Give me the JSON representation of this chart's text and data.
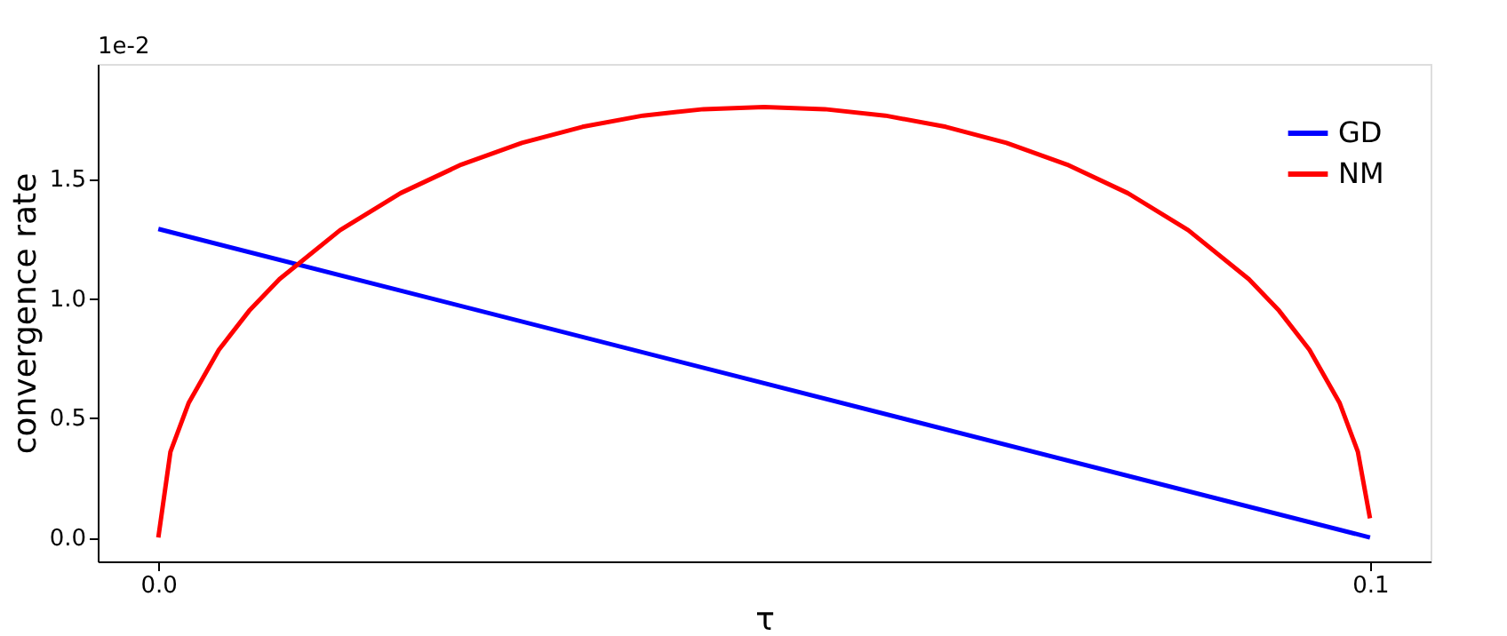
{
  "chart_data": {
    "type": "line",
    "xlabel": "τ",
    "ylabel": "convergence rate",
    "annotations": [
      "1e-2"
    ],
    "xlim": [
      -0.005,
      0.105
    ],
    "ylim": [
      -0.1,
      1.98
    ],
    "xticks": [
      {
        "value": 0,
        "label": "0.0"
      },
      0.1
    ],
    "yticks": [
      {
        "value": 0,
        "label": "0.0"
      },
      0.5,
      {
        "value": 1,
        "label": "1.0"
      },
      1.5
    ],
    "grid": false,
    "legend": "top right",
    "line_style": "solid",
    "marker": "none",
    "series": [
      {
        "name": "GD",
        "color": "#0000ff",
        "x": [
          0,
          0.1
        ],
        "values": [
          1.29,
          0
        ]
      },
      {
        "name": "NM",
        "color": "#ff0000",
        "x": [
          0,
          0.001,
          0.0025,
          0.005,
          0.0075,
          0.01,
          0.015,
          0.02,
          0.025,
          0.03,
          0.035,
          0.04,
          0.045,
          0.05,
          0.055,
          0.06,
          0.065,
          0.07,
          0.075,
          0.08,
          0.085,
          0.09,
          0.0925,
          0.095,
          0.0975,
          0.099,
          0.1
        ],
        "values": [
          0,
          0.358,
          0.562,
          0.785,
          0.948,
          1.08,
          1.285,
          1.44,
          1.559,
          1.65,
          1.717,
          1.764,
          1.791,
          1.8,
          1.791,
          1.764,
          1.717,
          1.65,
          1.559,
          1.44,
          1.285,
          1.08,
          0.948,
          0.785,
          0.562,
          0.358,
          0.08
        ]
      }
    ]
  }
}
